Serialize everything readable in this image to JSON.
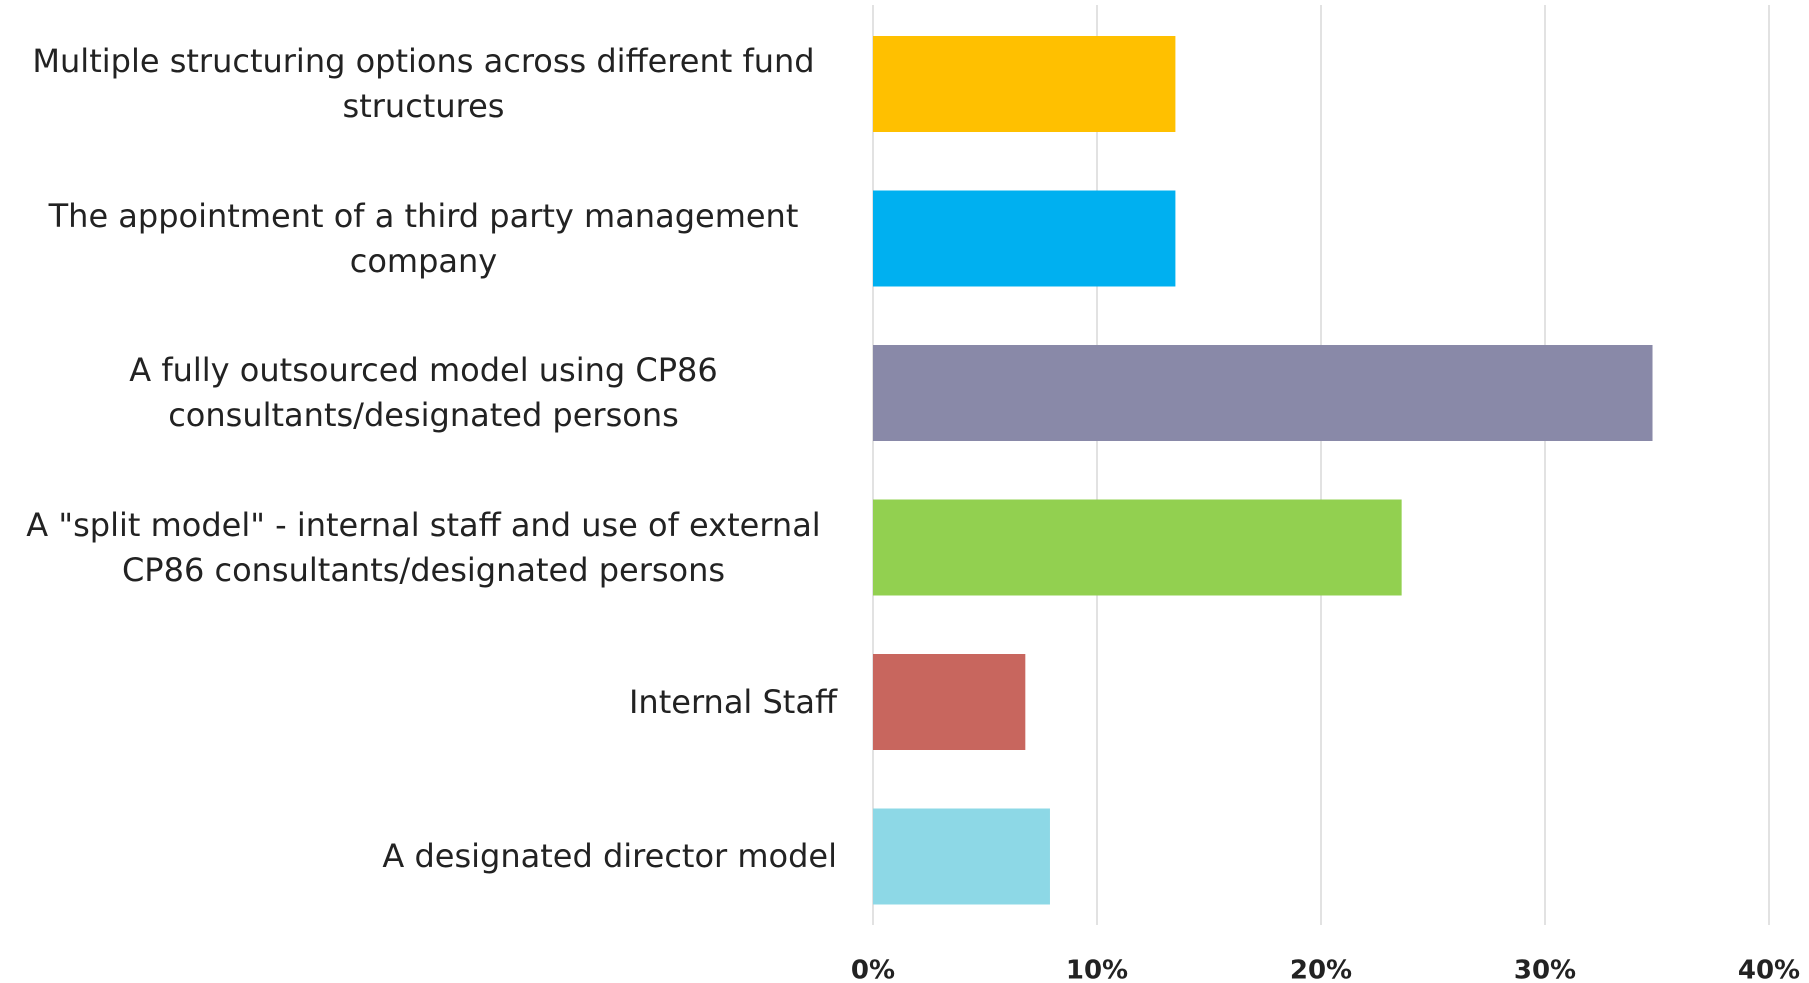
{
  "chart_data": {
    "type": "hbar",
    "categories": [
      "Multiple structuring options across different fund structures",
      "The appointment of a third party management company",
      "A fully outsourced model using CP86 consultants/designated persons",
      "A \"split model\" - internal staff and use of external CP86 consultants/designated persons",
      "Internal Staff",
      "A designated director model"
    ],
    "values": [
      13.5,
      13.5,
      34.8,
      23.6,
      6.8,
      7.9
    ],
    "colors": [
      "#ffc000",
      "#00b0f0",
      "#8989a8",
      "#92d050",
      "#c8665e",
      "#8dd8e6"
    ],
    "xlim": [
      0,
      40
    ],
    "xticks": [
      {
        "value": 0,
        "label": "0%"
      },
      {
        "value": 10,
        "label": "10%"
      },
      {
        "value": 20,
        "label": "20%"
      },
      {
        "value": 30,
        "label": "30%"
      },
      {
        "value": 40,
        "label": "40%"
      }
    ],
    "grid": true
  }
}
